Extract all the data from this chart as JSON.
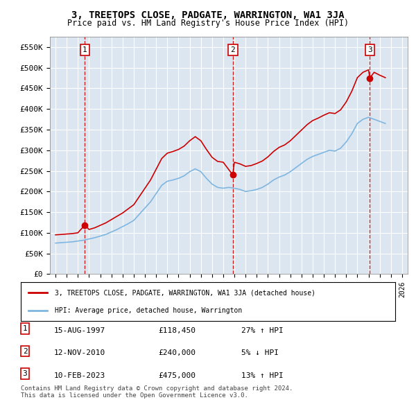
{
  "title": "3, TREETOPS CLOSE, PADGATE, WARRINGTON, WA1 3JA",
  "subtitle": "Price paid vs. HM Land Registry's House Price Index (HPI)",
  "ylabel": "",
  "background_color": "#dce6f1",
  "plot_bg_color": "#dce6f1",
  "ylim": [
    0,
    575000
  ],
  "yticks": [
    0,
    50000,
    100000,
    150000,
    200000,
    250000,
    300000,
    350000,
    400000,
    450000,
    500000,
    550000
  ],
  "ytick_labels": [
    "£0",
    "£50K",
    "£100K",
    "£150K",
    "£200K",
    "£250K",
    "£300K",
    "£350K",
    "£400K",
    "£450K",
    "£500K",
    "£550K"
  ],
  "xlim_start": 1994.5,
  "xlim_end": 2026.5,
  "sale_dates": [
    1997.617,
    2010.864,
    2023.115
  ],
  "sale_prices": [
    118450,
    240000,
    475000
  ],
  "sale_labels": [
    "1",
    "2",
    "3"
  ],
  "hpi_line_color": "#7eb6e0",
  "property_line_color": "#cc0000",
  "sale_marker_color": "#cc0000",
  "dashed_line_color": "#cc0000",
  "legend_property": "3, TREETOPS CLOSE, PADGATE, WARRINGTON, WA1 3JA (detached house)",
  "legend_hpi": "HPI: Average price, detached house, Warrington",
  "table_data": [
    {
      "num": "1",
      "date": "15-AUG-1997",
      "price": "£118,450",
      "change": "27% ↑ HPI"
    },
    {
      "num": "2",
      "date": "12-NOV-2010",
      "price": "£240,000",
      "change": "5% ↓ HPI"
    },
    {
      "num": "3",
      "date": "10-FEB-2023",
      "price": "£475,000",
      "change": "13% ↑ HPI"
    }
  ],
  "footer": "Contains HM Land Registry data © Crown copyright and database right 2024.\nThis data is licensed under the Open Government Licence v3.0.",
  "hpi_years": [
    1995,
    1995.5,
    1996,
    1996.5,
    1997,
    1997.5,
    1998,
    1998.5,
    1999,
    1999.5,
    2000,
    2000.5,
    2001,
    2001.5,
    2002,
    2002.5,
    2003,
    2003.5,
    2004,
    2004.5,
    2005,
    2005.5,
    2006,
    2006.5,
    2007,
    2007.5,
    2008,
    2008.5,
    2009,
    2009.5,
    2010,
    2010.5,
    2011,
    2011.5,
    2012,
    2012.5,
    2013,
    2013.5,
    2014,
    2014.5,
    2015,
    2015.5,
    2016,
    2016.5,
    2017,
    2017.5,
    2018,
    2018.5,
    2019,
    2019.5,
    2020,
    2020.5,
    2021,
    2021.5,
    2022,
    2022.5,
    2023,
    2023.5,
    2024,
    2024.5
  ],
  "hpi_values": [
    75000,
    76000,
    77000,
    78000,
    80000,
    82000,
    85000,
    88000,
    92000,
    96000,
    102000,
    108000,
    115000,
    122000,
    130000,
    145000,
    160000,
    175000,
    195000,
    215000,
    225000,
    228000,
    232000,
    238000,
    248000,
    255000,
    248000,
    232000,
    218000,
    210000,
    208000,
    210000,
    208000,
    205000,
    200000,
    202000,
    205000,
    210000,
    218000,
    228000,
    235000,
    240000,
    248000,
    258000,
    268000,
    278000,
    285000,
    290000,
    295000,
    300000,
    298000,
    305000,
    320000,
    340000,
    365000,
    375000,
    380000,
    375000,
    370000,
    365000
  ],
  "property_years": [
    1995,
    1995.5,
    1996,
    1996.5,
    1997,
    1997.617,
    1998,
    1998.5,
    1999,
    1999.5,
    2000,
    2000.5,
    2001,
    2001.5,
    2002,
    2002.5,
    2003,
    2003.5,
    2004,
    2004.5,
    2005,
    2005.5,
    2006,
    2006.5,
    2007,
    2007.5,
    2008,
    2008.5,
    2009,
    2009.5,
    2010,
    2010.864,
    2011,
    2011.5,
    2012,
    2012.5,
    2013,
    2013.5,
    2014,
    2014.5,
    2015,
    2015.5,
    2016,
    2016.5,
    2017,
    2017.5,
    2018,
    2018.5,
    2019,
    2019.5,
    2020,
    2020.5,
    2021,
    2021.5,
    2022,
    2022.5,
    2023,
    2023.115,
    2023.5,
    2024,
    2024.5
  ],
  "property_values": [
    95000,
    96000,
    97000,
    98000,
    100000,
    118450,
    108000,
    112000,
    118000,
    124000,
    132000,
    140000,
    148000,
    158000,
    168000,
    188000,
    208000,
    228000,
    254000,
    280000,
    293000,
    297000,
    302000,
    310000,
    323000,
    333000,
    323000,
    302000,
    283000,
    273000,
    271000,
    240000,
    271000,
    267000,
    261000,
    263000,
    268000,
    274000,
    284000,
    297000,
    307000,
    313000,
    323000,
    336000,
    349000,
    362000,
    372000,
    378000,
    385000,
    391000,
    389000,
    398000,
    417000,
    443000,
    476000,
    489000,
    495000,
    475000,
    489000,
    482000,
    476000
  ]
}
